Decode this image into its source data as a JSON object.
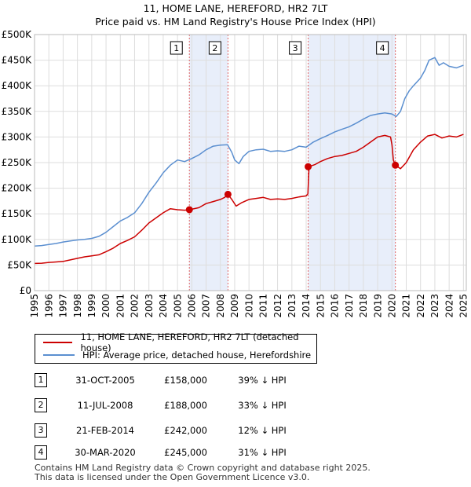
{
  "chart_data": {
    "type": "line",
    "title": "11, HOME LANE, HEREFORD, HR2 7LT",
    "subtitle": "Price paid vs. HM Land Registry's House Price Index (HPI)",
    "xlim": [
      1995,
      2025.2
    ],
    "ylim": [
      0,
      500000
    ],
    "x_ticks": [
      1995,
      1996,
      1997,
      1998,
      1999,
      2000,
      2001,
      2002,
      2003,
      2004,
      2005,
      2006,
      2007,
      2008,
      2009,
      2010,
      2011,
      2012,
      2013,
      2014,
      2015,
      2016,
      2017,
      2018,
      2019,
      2020,
      2021,
      2022,
      2023,
      2024,
      2025
    ],
    "y_ticks": [
      {
        "value": 0,
        "label": "£0"
      },
      {
        "value": 50000,
        "label": "£50K"
      },
      {
        "value": 100000,
        "label": "£100K"
      },
      {
        "value": 150000,
        "label": "£150K"
      },
      {
        "value": 200000,
        "label": "£200K"
      },
      {
        "value": 250000,
        "label": "£250K"
      },
      {
        "value": 300000,
        "label": "£300K"
      },
      {
        "value": 350000,
        "label": "£350K"
      },
      {
        "value": 400000,
        "label": "£400K"
      },
      {
        "value": 450000,
        "label": "£450K"
      },
      {
        "value": 500000,
        "label": "£500K"
      }
    ],
    "series": [
      {
        "name": "11, HOME LANE, HEREFORD, HR2 7LT (detached house)",
        "color": "#cc0000",
        "x": [
          1995.0,
          1995.5,
          1996.0,
          1996.5,
          1997.0,
          1997.5,
          1998.0,
          1998.5,
          1999.0,
          1999.5,
          2000.0,
          2000.5,
          2001.0,
          2001.5,
          2002.0,
          2002.5,
          2003.0,
          2003.5,
          2004.0,
          2004.5,
          2005.0,
          2005.5,
          2005.83,
          2006.5,
          2007.0,
          2007.5,
          2008.0,
          2008.3,
          2008.53,
          2008.8,
          2009.1,
          2009.5,
          2010.0,
          2010.5,
          2011.0,
          2011.5,
          2012.0,
          2012.5,
          2013.0,
          2013.5,
          2014.0,
          2014.12,
          2014.2,
          2014.6,
          2015.0,
          2015.5,
          2016.0,
          2016.5,
          2017.0,
          2017.5,
          2018.0,
          2018.5,
          2019.0,
          2019.5,
          2019.9,
          2020.0,
          2020.1,
          2020.24,
          2020.6,
          2021.0,
          2021.5,
          2022.0,
          2022.5,
          2023.0,
          2023.5,
          2024.0,
          2024.5,
          2025.0
        ],
        "y": [
          53000,
          53500,
          55000,
          56000,
          57000,
          60000,
          63000,
          66000,
          68000,
          70000,
          76000,
          83000,
          92000,
          98000,
          105000,
          118000,
          132000,
          142000,
          152000,
          160000,
          158000,
          157000,
          158000,
          162000,
          170000,
          174000,
          178000,
          182000,
          188000,
          178000,
          165000,
          172000,
          178000,
          180000,
          182000,
          178000,
          179000,
          178000,
          180000,
          183000,
          185000,
          189000,
          242000,
          246000,
          252000,
          258000,
          262000,
          264000,
          268000,
          272000,
          280000,
          290000,
          300000,
          303000,
          300000,
          285000,
          255000,
          245000,
          238000,
          250000,
          275000,
          290000,
          302000,
          305000,
          298000,
          302000,
          300000,
          305000
        ]
      },
      {
        "name": "HPI: Average price, detached house, Herefordshire",
        "color": "#5b8fd0",
        "x": [
          1995.0,
          1995.5,
          1996.0,
          1996.5,
          1997.0,
          1997.5,
          1998.0,
          1998.5,
          1999.0,
          1999.5,
          2000.0,
          2000.5,
          2001.0,
          2001.5,
          2002.0,
          2002.5,
          2003.0,
          2003.5,
          2004.0,
          2004.5,
          2005.0,
          2005.5,
          2006.0,
          2006.5,
          2007.0,
          2007.5,
          2008.0,
          2008.5,
          2008.8,
          2009.0,
          2009.3,
          2009.6,
          2010.0,
          2010.5,
          2011.0,
          2011.5,
          2012.0,
          2012.5,
          2013.0,
          2013.5,
          2014.0,
          2014.5,
          2015.0,
          2015.5,
          2016.0,
          2016.5,
          2017.0,
          2017.5,
          2018.0,
          2018.5,
          2019.0,
          2019.5,
          2020.0,
          2020.3,
          2020.6,
          2020.9,
          2021.2,
          2021.5,
          2022.0,
          2022.3,
          2022.6,
          2023.0,
          2023.3,
          2023.6,
          2024.0,
          2024.5,
          2025.0
        ],
        "y": [
          87000,
          88000,
          90000,
          92000,
          95000,
          97000,
          99000,
          100000,
          102000,
          106000,
          114000,
          125000,
          136000,
          143000,
          152000,
          170000,
          192000,
          210000,
          230000,
          245000,
          255000,
          252000,
          258000,
          265000,
          275000,
          282000,
          284000,
          285000,
          270000,
          255000,
          248000,
          262000,
          272000,
          275000,
          276000,
          272000,
          273000,
          272000,
          275000,
          282000,
          280000,
          290000,
          297000,
          303000,
          310000,
          315000,
          320000,
          327000,
          335000,
          342000,
          345000,
          347000,
          345000,
          340000,
          350000,
          375000,
          390000,
          400000,
          415000,
          430000,
          450000,
          455000,
          440000,
          445000,
          438000,
          435000,
          440000
        ]
      }
    ],
    "sales": [
      {
        "label": "1",
        "x": 2005.83,
        "price": 158000
      },
      {
        "label": "2",
        "x": 2008.53,
        "price": 188000
      },
      {
        "label": "3",
        "x": 2014.14,
        "price": 242000
      },
      {
        "label": "4",
        "x": 2020.24,
        "price": 245000
      }
    ],
    "shaded_spans": [
      [
        2005.83,
        2008.53
      ],
      [
        2014.14,
        2020.24
      ]
    ]
  },
  "legend": {
    "property": "11, HOME LANE, HEREFORD, HR2 7LT (detached house)",
    "hpi": "HPI: Average price, detached house, Herefordshire"
  },
  "table": [
    {
      "num": "1",
      "date": "31-OCT-2005",
      "price": "£158,000",
      "hpi": "39% ↓ HPI"
    },
    {
      "num": "2",
      "date": "11-JUL-2008",
      "price": "£188,000",
      "hpi": "33% ↓ HPI"
    },
    {
      "num": "3",
      "date": "21-FEB-2014",
      "price": "£242,000",
      "hpi": "12% ↓ HPI"
    },
    {
      "num": "4",
      "date": "30-MAR-2020",
      "price": "£245,000",
      "hpi": "31% ↓ HPI"
    }
  ],
  "footer": {
    "line1": "Contains HM Land Registry data © Crown copyright and database right 2025.",
    "line2": "This data is licensed under the Open Government Licence v3.0."
  },
  "colors": {
    "property": "#cc0000",
    "hpi": "#5b8fd0",
    "shade": "#e8eefa",
    "grid": "#dddddd",
    "vline": "#e06666"
  }
}
